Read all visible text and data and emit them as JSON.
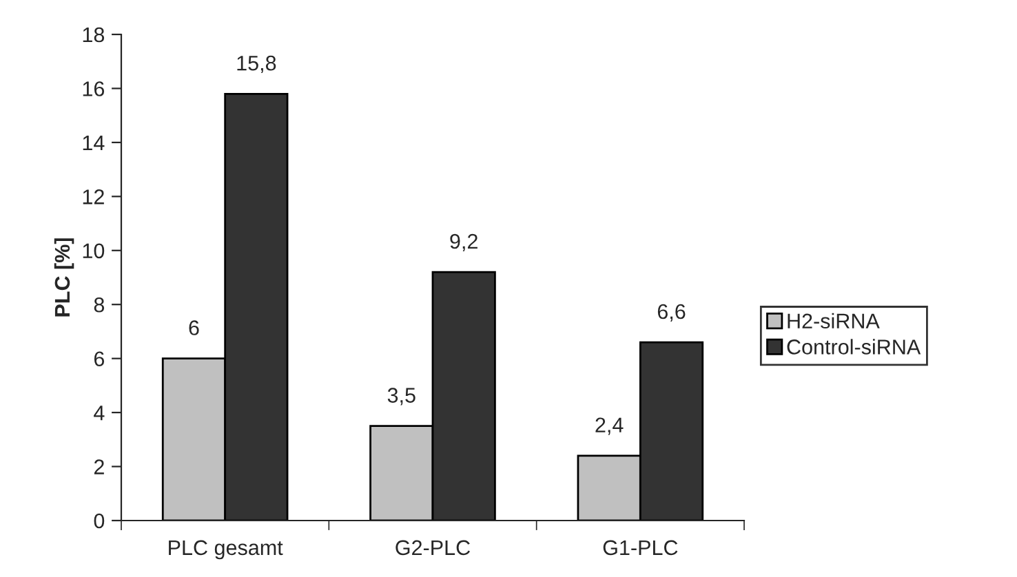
{
  "chart_data": {
    "type": "bar",
    "ylabel": "PLC [%]",
    "categories": [
      "PLC gesamt",
      "G2-PLC",
      "G1-PLC"
    ],
    "series": [
      {
        "name": "H2-siRNA",
        "color": "#c0c0c0",
        "values": [
          6,
          3.5,
          2.4
        ],
        "value_labels": [
          "6",
          "3,5",
          "2,4"
        ]
      },
      {
        "name": "Control-siRNA",
        "color": "#333333",
        "values": [
          15.8,
          9.2,
          6.6
        ],
        "value_labels": [
          "15,8",
          "9,2",
          "6,6"
        ]
      }
    ],
    "ylim": [
      0,
      18
    ],
    "yticks": [
      0,
      2,
      4,
      6,
      8,
      10,
      12,
      14,
      16,
      18
    ],
    "grid": false,
    "legend": "right"
  }
}
